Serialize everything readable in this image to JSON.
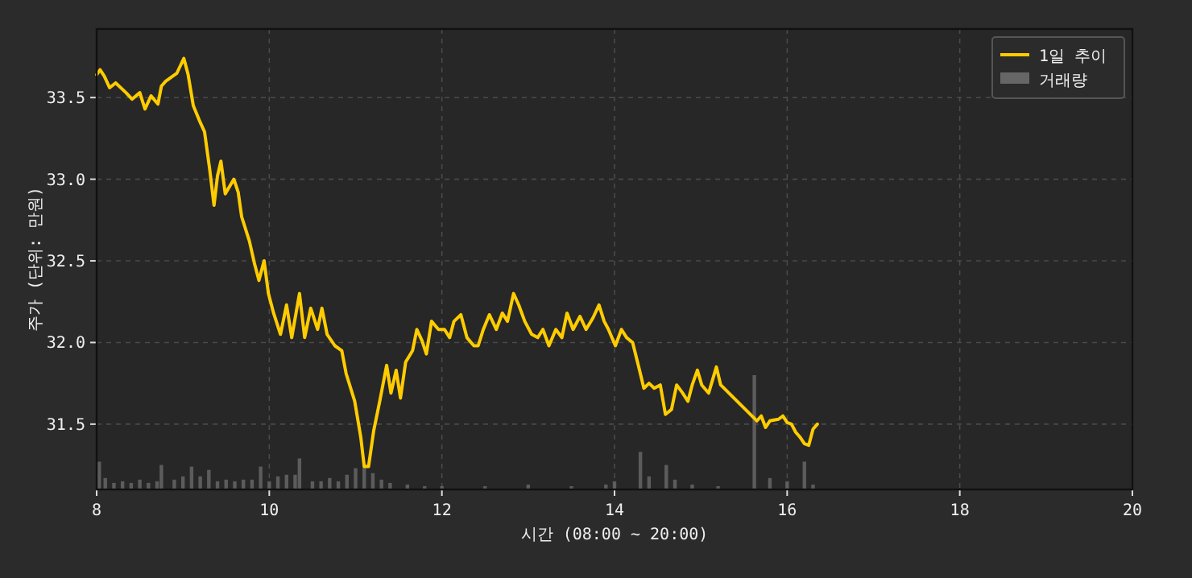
{
  "chart_data": {
    "type": "line",
    "xlabel": "시간 (08:00 ~ 20:00)",
    "ylabel": "주가 (단위: 만원)",
    "xlim": [
      8,
      20
    ],
    "xticks": [
      8,
      10,
      12,
      14,
      16,
      18,
      20
    ],
    "ylim": [
      31.1,
      33.92
    ],
    "yticks": [
      31.5,
      {
        "value": 32,
        "label": "32.0"
      },
      32.5,
      {
        "value": 33,
        "label": "33.0"
      },
      33.5
    ],
    "grid": true,
    "legend": "top right",
    "series": [
      {
        "name": "1일 추이",
        "color": "#ffcc00",
        "x": [
          8.0,
          8.04,
          8.09,
          8.15,
          8.22,
          8.34,
          8.41,
          8.5,
          8.56,
          8.63,
          8.71,
          8.75,
          8.8,
          8.93,
          9.01,
          9.06,
          9.12,
          9.19,
          9.25,
          9.31,
          9.36,
          9.4,
          9.44,
          9.49,
          9.59,
          9.64,
          9.68,
          9.77,
          9.83,
          9.88,
          9.94,
          9.99,
          10.05,
          10.13,
          10.2,
          10.26,
          10.35,
          10.41,
          10.48,
          10.56,
          10.61,
          10.67,
          10.76,
          10.84,
          10.89,
          10.99,
          11.06,
          11.1,
          11.15,
          11.21,
          11.28,
          11.36,
          11.41,
          11.47,
          11.52,
          11.58,
          11.66,
          11.71,
          11.77,
          11.82,
          11.88,
          11.96,
          12.03,
          12.09,
          12.14,
          12.22,
          12.29,
          12.37,
          12.42,
          12.48,
          12.55,
          12.63,
          12.7,
          12.76,
          12.83,
          12.89,
          12.96,
          13.04,
          13.11,
          13.17,
          13.24,
          13.32,
          13.39,
          13.45,
          13.52,
          13.6,
          13.67,
          13.75,
          13.82,
          13.88,
          13.93,
          14.01,
          14.08,
          14.14,
          14.21,
          14.29,
          14.34,
          14.4,
          14.46,
          14.53,
          14.59,
          14.66,
          14.72,
          14.79,
          14.85,
          14.9,
          14.96,
          15.01,
          15.09,
          15.18,
          15.23,
          15.65,
          15.7,
          15.75,
          15.8,
          15.9,
          15.95,
          16.0,
          16.05,
          16.1,
          16.15,
          16.2,
          16.25,
          16.3,
          16.35
        ],
        "values": [
          33.64,
          33.67,
          33.63,
          33.56,
          33.59,
          33.53,
          33.49,
          33.53,
          33.43,
          33.51,
          33.46,
          33.57,
          33.6,
          33.65,
          33.74,
          33.64,
          33.45,
          33.36,
          33.29,
          33.06,
          32.84,
          33.02,
          33.11,
          32.91,
          33.0,
          32.92,
          32.77,
          32.62,
          32.48,
          32.38,
          32.5,
          32.3,
          32.18,
          32.05,
          32.23,
          32.03,
          32.3,
          32.03,
          32.21,
          32.08,
          32.21,
          32.05,
          31.98,
          31.95,
          31.81,
          31.64,
          31.42,
          31.24,
          31.24,
          31.46,
          31.64,
          31.86,
          31.69,
          31.83,
          31.66,
          31.88,
          31.95,
          32.08,
          32.01,
          31.93,
          32.13,
          32.08,
          32.08,
          32.03,
          32.13,
          32.17,
          32.03,
          31.98,
          31.98,
          32.08,
          32.17,
          32.08,
          32.18,
          32.13,
          32.3,
          32.23,
          32.13,
          32.05,
          32.03,
          32.08,
          31.98,
          32.08,
          32.03,
          32.18,
          32.08,
          32.16,
          32.08,
          32.15,
          32.23,
          32.13,
          32.08,
          31.98,
          32.08,
          32.03,
          32.0,
          31.83,
          31.72,
          31.75,
          31.72,
          31.74,
          31.56,
          31.59,
          31.74,
          31.69,
          31.64,
          31.74,
          31.83,
          31.74,
          31.69,
          31.85,
          31.74,
          31.52,
          31.55,
          31.48,
          31.52,
          31.53,
          31.55,
          31.51,
          31.5,
          31.45,
          31.42,
          31.38,
          31.37,
          31.47,
          31.5
        ]
      },
      {
        "name": "거래량",
        "type": "bar",
        "color": "#666666",
        "x": [
          8.03,
          8.1,
          8.2,
          8.3,
          8.4,
          8.5,
          8.6,
          8.7,
          8.75,
          8.9,
          9.0,
          9.1,
          9.2,
          9.3,
          9.4,
          9.5,
          9.6,
          9.7,
          9.8,
          9.9,
          10.0,
          10.1,
          10.2,
          10.3,
          10.35,
          10.5,
          10.6,
          10.7,
          10.8,
          10.9,
          11.0,
          11.1,
          11.2,
          11.3,
          11.4,
          11.6,
          11.8,
          12.0,
          12.5,
          13.0,
          13.5,
          13.9,
          14.0,
          14.3,
          14.4,
          14.6,
          14.7,
          14.9,
          15.2,
          15.62,
          15.8,
          16.0,
          16.2,
          16.3
        ],
        "base": [
          31.1,
          31.1,
          31.1,
          31.1,
          31.1,
          31.1,
          31.1,
          31.1,
          31.1,
          31.1,
          31.1,
          31.1,
          31.1,
          31.1,
          31.1,
          31.1,
          31.1,
          31.1,
          31.1,
          31.1,
          31.1,
          31.1,
          31.1,
          31.1,
          31.1,
          31.1,
          31.1,
          31.1,
          31.1,
          31.1,
          31.1,
          31.1,
          31.1,
          31.1,
          31.1,
          31.1,
          31.1,
          31.1,
          31.1,
          31.1,
          31.1,
          31.1,
          31.1,
          31.1,
          31.1,
          31.1,
          31.1,
          31.1,
          31.1,
          31.1,
          31.1,
          31.1,
          31.1,
          31.1
        ],
        "values": [
          0.17,
          0.07,
          0.04,
          0.05,
          0.04,
          0.06,
          0.04,
          0.05,
          0.15,
          0.06,
          0.08,
          0.14,
          0.08,
          0.12,
          0.05,
          0.06,
          0.05,
          0.06,
          0.06,
          0.14,
          0.05,
          0.08,
          0.09,
          0.09,
          0.19,
          0.05,
          0.05,
          0.07,
          0.05,
          0.09,
          0.13,
          0.16,
          0.1,
          0.06,
          0.04,
          0.03,
          0.02,
          0.02,
          0.02,
          0.03,
          0.02,
          0.03,
          0.05,
          0.23,
          0.08,
          0.15,
          0.06,
          0.03,
          0.02,
          0.7,
          0.07,
          0.05,
          0.17,
          0.03
        ]
      }
    ]
  }
}
